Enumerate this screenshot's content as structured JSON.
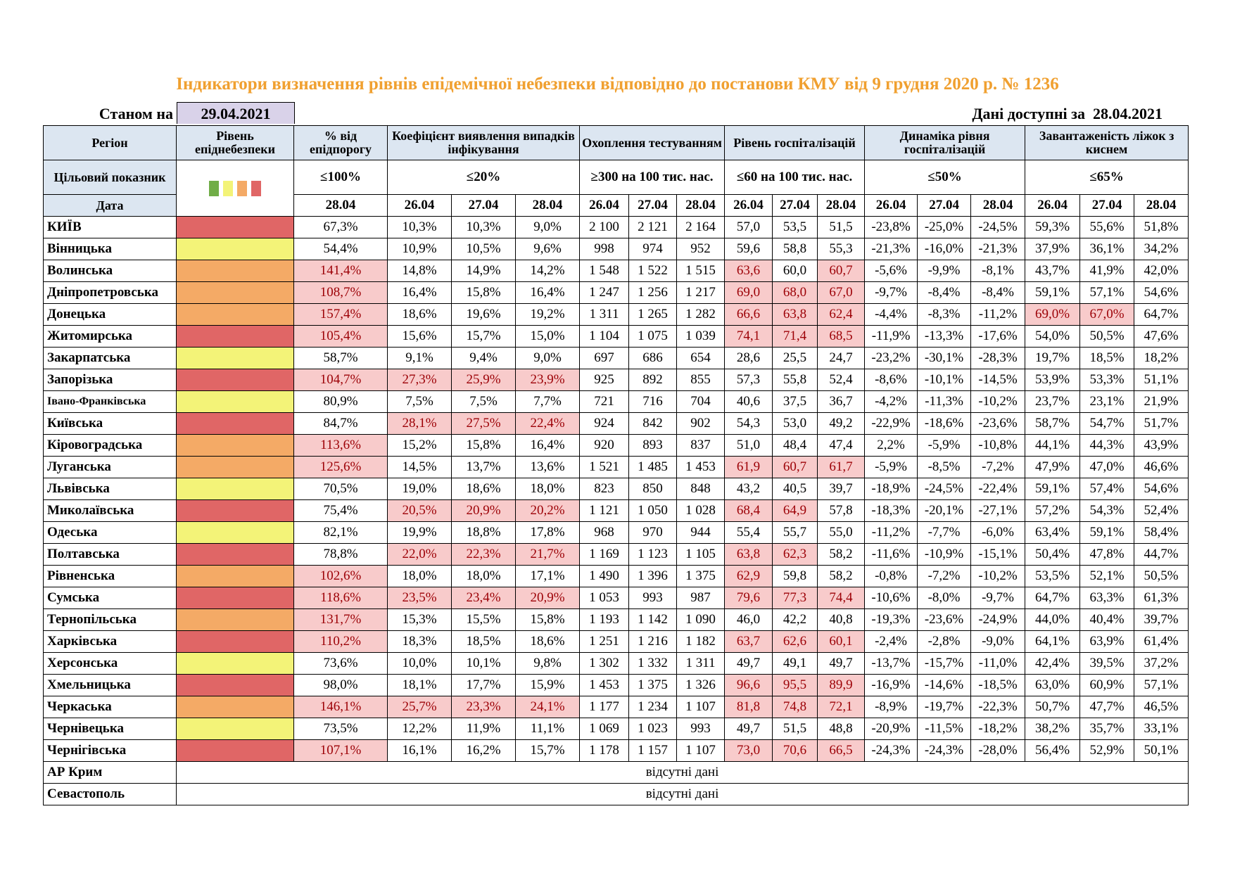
{
  "title": "Індикатори визначення рівнів епідемічної небезпеки відповідно до постанови КМУ від 9 грудня 2020 р. № 1236",
  "status": {
    "as_of_label": "Станом на",
    "as_of_date": "29.04.2021",
    "available_label": "Дані доступні за",
    "available_date": "28.04.2021"
  },
  "level_colors": {
    "green": "#70ad47",
    "yellow": "#f3f378",
    "orange": "#f4aa66",
    "red": "#e06666"
  },
  "legend_levels": [
    "green",
    "yellow",
    "orange",
    "red"
  ],
  "table": {
    "region_header": "Регіон",
    "level_header": "Рівень епіднебезпеки",
    "target_label": "Цільовий показник",
    "date_label": "Дата",
    "groups": [
      {
        "label": "% від епідпорогу",
        "target": "≤100%",
        "dates": [
          "28.04"
        ]
      },
      {
        "label": "Коефіцієнт виявлення випадків інфікування",
        "target": "≤20%",
        "dates": [
          "26.04",
          "27.04",
          "28.04"
        ]
      },
      {
        "label": "Охоплення тестуванням",
        "target": "≥300 на 100 тис. нас.",
        "dates": [
          "26.04",
          "27.04",
          "28.04"
        ]
      },
      {
        "label": "Рівень госпіталізацій",
        "target": "≤60 на 100 тис. нас.",
        "dates": [
          "26.04",
          "27.04",
          "28.04"
        ]
      },
      {
        "label": "Динаміка рівня госпіталізацій",
        "target": "≤50%",
        "dates": [
          "26.04",
          "27.04",
          "28.04"
        ]
      },
      {
        "label": "Завантаженість ліжок з киснем",
        "target": "≤65%",
        "dates": [
          "26.04",
          "27.04",
          "28.04"
        ]
      }
    ],
    "rows": [
      {
        "region": "КИЇВ",
        "level": "red",
        "values": [
          "67,3%",
          "10,3%",
          "10,3%",
          "9,0%",
          "2 100",
          "2 121",
          "2 164",
          "57,0",
          "53,5",
          "51,5",
          "-23,8%",
          "-25,0%",
          "-24,5%",
          "59,3%",
          "55,6%",
          "51,8%"
        ],
        "flagged": []
      },
      {
        "region": "Вінницька",
        "level": "yellow",
        "values": [
          "54,4%",
          "10,9%",
          "10,5%",
          "9,6%",
          "998",
          "974",
          "952",
          "59,6",
          "58,8",
          "55,3",
          "-21,3%",
          "-16,0%",
          "-21,3%",
          "37,9%",
          "36,1%",
          "34,2%"
        ],
        "flagged": []
      },
      {
        "region": "Волинська",
        "level": "orange",
        "values": [
          "141,4%",
          "14,8%",
          "14,9%",
          "14,2%",
          "1 548",
          "1 522",
          "1 515",
          "63,6",
          "60,0",
          "60,7",
          "-5,6%",
          "-9,9%",
          "-8,1%",
          "43,7%",
          "41,9%",
          "42,0%"
        ],
        "flagged": [
          0,
          7,
          9
        ]
      },
      {
        "region": "Дніпропетровська",
        "level": "orange",
        "values": [
          "108,7%",
          "16,4%",
          "15,8%",
          "16,4%",
          "1 247",
          "1 256",
          "1 217",
          "69,0",
          "68,0",
          "67,0",
          "-9,7%",
          "-8,4%",
          "-8,4%",
          "59,1%",
          "57,1%",
          "54,6%"
        ],
        "flagged": [
          0,
          7,
          8,
          9
        ]
      },
      {
        "region": "Донецька",
        "level": "orange",
        "values": [
          "157,4%",
          "18,6%",
          "19,6%",
          "19,2%",
          "1 311",
          "1 265",
          "1 282",
          "66,6",
          "63,8",
          "62,4",
          "-4,4%",
          "-8,3%",
          "-11,2%",
          "69,0%",
          "67,0%",
          "64,7%"
        ],
        "flagged": [
          0,
          7,
          8,
          9,
          13,
          14
        ]
      },
      {
        "region": "Житомирська",
        "level": "red",
        "values": [
          "105,4%",
          "15,6%",
          "15,7%",
          "15,0%",
          "1 104",
          "1 075",
          "1 039",
          "74,1",
          "71,4",
          "68,5",
          "-11,9%",
          "-13,3%",
          "-17,6%",
          "54,0%",
          "50,5%",
          "47,6%"
        ],
        "flagged": [
          0,
          7,
          8,
          9
        ]
      },
      {
        "region": "Закарпатська",
        "level": "yellow",
        "values": [
          "58,7%",
          "9,1%",
          "9,4%",
          "9,0%",
          "697",
          "686",
          "654",
          "28,6",
          "25,5",
          "24,7",
          "-23,2%",
          "-30,1%",
          "-28,3%",
          "19,7%",
          "18,5%",
          "18,2%"
        ],
        "flagged": []
      },
      {
        "region": "Запорізька",
        "level": "red",
        "values": [
          "104,7%",
          "27,3%",
          "25,9%",
          "23,9%",
          "925",
          "892",
          "855",
          "57,3",
          "55,8",
          "52,4",
          "-8,6%",
          "-10,1%",
          "-14,5%",
          "53,9%",
          "53,3%",
          "51,1%"
        ],
        "flagged": [
          0,
          1,
          2,
          3
        ]
      },
      {
        "region": "Івано-Франківська",
        "level": "yellow",
        "values": [
          "80,9%",
          "7,5%",
          "7,5%",
          "7,7%",
          "721",
          "716",
          "704",
          "40,6",
          "37,5",
          "36,7",
          "-4,2%",
          "-11,3%",
          "-10,2%",
          "23,7%",
          "23,1%",
          "21,9%"
        ],
        "flagged": []
      },
      {
        "region": "Київська",
        "level": "red",
        "values": [
          "84,7%",
          "28,1%",
          "27,5%",
          "22,4%",
          "924",
          "842",
          "902",
          "54,3",
          "53,0",
          "49,2",
          "-22,9%",
          "-18,6%",
          "-23,6%",
          "58,7%",
          "54,7%",
          "51,7%"
        ],
        "flagged": [
          1,
          2,
          3
        ]
      },
      {
        "region": "Кіровоградська",
        "level": "orange",
        "values": [
          "113,6%",
          "15,2%",
          "15,8%",
          "16,4%",
          "920",
          "893",
          "837",
          "51,0",
          "48,4",
          "47,4",
          "2,2%",
          "-5,9%",
          "-10,8%",
          "44,1%",
          "44,3%",
          "43,9%"
        ],
        "flagged": [
          0
        ]
      },
      {
        "region": "Луганська",
        "level": "orange",
        "values": [
          "125,6%",
          "14,5%",
          "13,7%",
          "13,6%",
          "1 521",
          "1 485",
          "1 453",
          "61,9",
          "60,7",
          "61,7",
          "-5,9%",
          "-8,5%",
          "-7,2%",
          "47,9%",
          "47,0%",
          "46,6%"
        ],
        "flagged": [
          0,
          7,
          8,
          9
        ]
      },
      {
        "region": "Львівська",
        "level": "yellow",
        "values": [
          "70,5%",
          "19,0%",
          "18,6%",
          "18,0%",
          "823",
          "850",
          "848",
          "43,2",
          "40,5",
          "39,7",
          "-18,9%",
          "-24,5%",
          "-22,4%",
          "59,1%",
          "57,4%",
          "54,6%"
        ],
        "flagged": []
      },
      {
        "region": "Миколаївська",
        "level": "red",
        "values": [
          "75,4%",
          "20,5%",
          "20,9%",
          "20,2%",
          "1 121",
          "1 050",
          "1 028",
          "68,4",
          "64,9",
          "57,8",
          "-18,3%",
          "-20,1%",
          "-27,1%",
          "57,2%",
          "54,3%",
          "52,4%"
        ],
        "flagged": [
          1,
          2,
          3,
          7,
          8
        ]
      },
      {
        "region": "Одеська",
        "level": "yellow",
        "values": [
          "82,1%",
          "19,9%",
          "18,8%",
          "17,8%",
          "968",
          "970",
          "944",
          "55,4",
          "55,7",
          "55,0",
          "-11,2%",
          "-7,7%",
          "-6,0%",
          "63,4%",
          "59,1%",
          "58,4%"
        ],
        "flagged": []
      },
      {
        "region": "Полтавська",
        "level": "red",
        "values": [
          "78,8%",
          "22,0%",
          "22,3%",
          "21,7%",
          "1 169",
          "1 123",
          "1 105",
          "63,8",
          "62,3",
          "58,2",
          "-11,6%",
          "-10,9%",
          "-15,1%",
          "50,4%",
          "47,8%",
          "44,7%"
        ],
        "flagged": [
          1,
          2,
          3,
          7,
          8
        ]
      },
      {
        "region": "Рівненська",
        "level": "orange",
        "values": [
          "102,6%",
          "18,0%",
          "18,0%",
          "17,1%",
          "1 490",
          "1 396",
          "1 375",
          "62,9",
          "59,8",
          "58,2",
          "-0,8%",
          "-7,2%",
          "-10,2%",
          "53,5%",
          "52,1%",
          "50,5%"
        ],
        "flagged": [
          0,
          7
        ]
      },
      {
        "region": "Сумська",
        "level": "red",
        "values": [
          "118,6%",
          "23,5%",
          "23,4%",
          "20,9%",
          "1 053",
          "993",
          "987",
          "79,6",
          "77,3",
          "74,4",
          "-10,6%",
          "-8,0%",
          "-9,7%",
          "64,7%",
          "63,3%",
          "61,3%"
        ],
        "flagged": [
          0,
          1,
          2,
          3,
          7,
          8,
          9
        ]
      },
      {
        "region": "Тернопільська",
        "level": "orange",
        "values": [
          "131,7%",
          "15,3%",
          "15,5%",
          "15,8%",
          "1 193",
          "1 142",
          "1 090",
          "46,0",
          "42,2",
          "40,8",
          "-19,3%",
          "-23,6%",
          "-24,9%",
          "44,0%",
          "40,4%",
          "39,7%"
        ],
        "flagged": [
          0
        ]
      },
      {
        "region": "Харківська",
        "level": "red",
        "values": [
          "110,2%",
          "18,3%",
          "18,5%",
          "18,6%",
          "1 251",
          "1 216",
          "1 182",
          "63,7",
          "62,6",
          "60,1",
          "-2,4%",
          "-2,8%",
          "-9,0%",
          "64,1%",
          "63,9%",
          "61,4%"
        ],
        "flagged": [
          0,
          7,
          8,
          9
        ]
      },
      {
        "region": "Херсонська",
        "level": "yellow",
        "values": [
          "73,6%",
          "10,0%",
          "10,1%",
          "9,8%",
          "1 302",
          "1 332",
          "1 311",
          "49,7",
          "49,1",
          "49,7",
          "-13,7%",
          "-15,7%",
          "-11,0%",
          "42,4%",
          "39,5%",
          "37,2%"
        ],
        "flagged": []
      },
      {
        "region": "Хмельницька",
        "level": "red",
        "values": [
          "98,0%",
          "18,1%",
          "17,7%",
          "15,9%",
          "1 453",
          "1 375",
          "1 326",
          "96,6",
          "95,5",
          "89,9",
          "-16,9%",
          "-14,6%",
          "-18,5%",
          "63,0%",
          "60,9%",
          "57,1%"
        ],
        "flagged": [
          7,
          8,
          9
        ]
      },
      {
        "region": "Черкаська",
        "level": "orange",
        "values": [
          "146,1%",
          "25,7%",
          "23,3%",
          "24,1%",
          "1 177",
          "1 234",
          "1 107",
          "81,8",
          "74,8",
          "72,1",
          "-8,9%",
          "-19,7%",
          "-22,3%",
          "50,7%",
          "47,7%",
          "46,5%"
        ],
        "flagged": [
          0,
          1,
          2,
          3,
          7,
          8,
          9
        ]
      },
      {
        "region": "Чернівецька",
        "level": "yellow",
        "values": [
          "73,5%",
          "12,2%",
          "11,9%",
          "11,1%",
          "1 069",
          "1 023",
          "993",
          "49,7",
          "51,5",
          "48,8",
          "-20,9%",
          "-11,5%",
          "-18,2%",
          "38,2%",
          "35,7%",
          "33,1%"
        ],
        "flagged": []
      },
      {
        "region": "Чернігівська",
        "level": "red",
        "values": [
          "107,1%",
          "16,1%",
          "16,2%",
          "15,7%",
          "1 178",
          "1 157",
          "1 107",
          "73,0",
          "70,6",
          "66,5",
          "-24,3%",
          "-24,3%",
          "-28,0%",
          "56,4%",
          "52,9%",
          "50,1%"
        ],
        "flagged": [
          0,
          7,
          8,
          9
        ]
      }
    ],
    "no_data_rows": [
      {
        "region": "АР Крим",
        "text": "відсутні дані"
      },
      {
        "region": "Севастополь",
        "text": "відсутні дані"
      }
    ]
  }
}
